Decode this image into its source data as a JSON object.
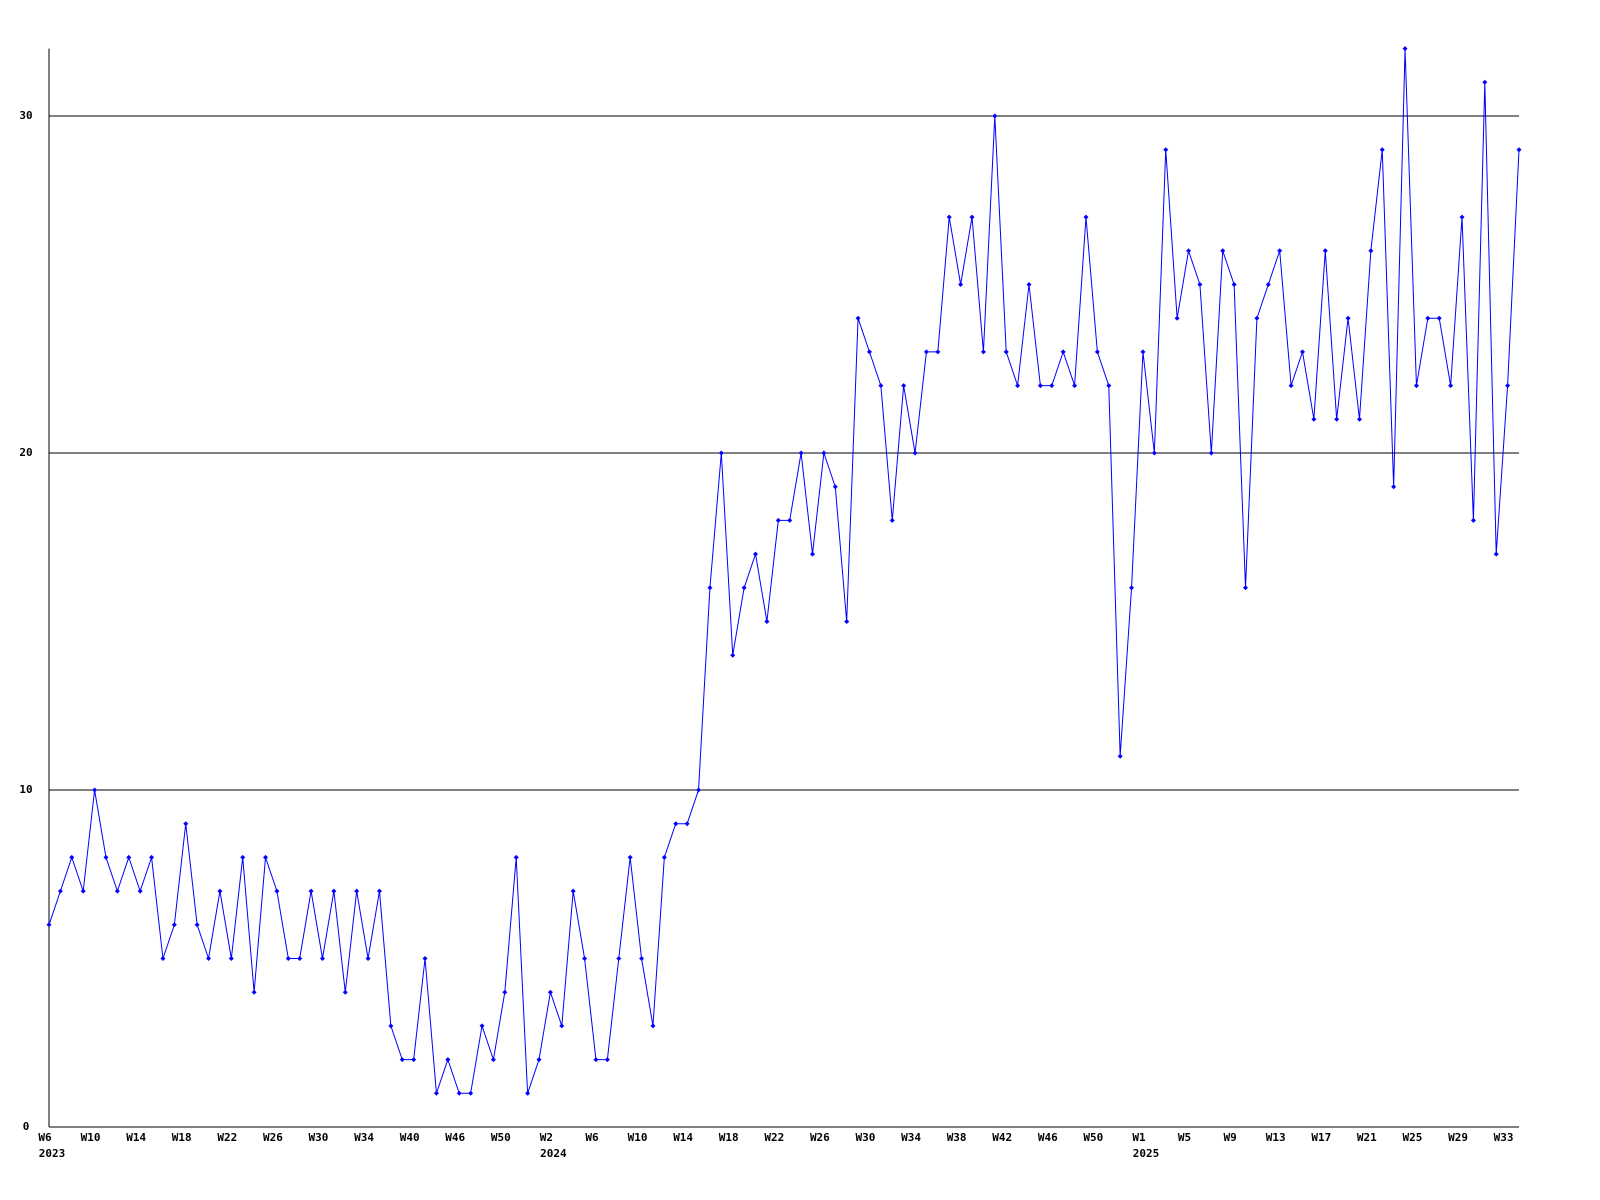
{
  "chart_data": {
    "type": "line",
    "categories": [
      "W6",
      null,
      null,
      null,
      "W10",
      null,
      null,
      null,
      "W14",
      null,
      null,
      null,
      "W18",
      null,
      null,
      null,
      "W22",
      null,
      null,
      null,
      "W26",
      null,
      null,
      null,
      "W30",
      null,
      null,
      null,
      "W34",
      null,
      null,
      null,
      "W40",
      null,
      null,
      null,
      "W46",
      null,
      null,
      null,
      "W50",
      null,
      null,
      null,
      "W2",
      null,
      null,
      null,
      "W6",
      null,
      null,
      null,
      "W10",
      null,
      null,
      null,
      "W14",
      null,
      null,
      null,
      "W18",
      null,
      null,
      null,
      "W22",
      null,
      null,
      null,
      "W26",
      null,
      null,
      null,
      "W30",
      null,
      null,
      null,
      "W34",
      null,
      null,
      null,
      "W38",
      null,
      null,
      null,
      "W42",
      null,
      null,
      null,
      "W46",
      null,
      null,
      null,
      "W50",
      null,
      null,
      null,
      "W1",
      null,
      null,
      null,
      "W5",
      null,
      null,
      null,
      "W9",
      null,
      null,
      null,
      "W13",
      null,
      null,
      null,
      "W17",
      null,
      null,
      null,
      "W21",
      null,
      null,
      null,
      "W25",
      null,
      null,
      null,
      "W29",
      null,
      null,
      null,
      "W33",
      null
    ],
    "years": [
      "2023",
      null,
      null,
      null,
      null,
      null,
      null,
      null,
      null,
      null,
      null,
      null,
      null,
      null,
      null,
      null,
      null,
      null,
      null,
      null,
      null,
      null,
      null,
      null,
      null,
      null,
      null,
      null,
      null,
      null,
      null,
      null,
      null,
      null,
      null,
      null,
      null,
      null,
      null,
      null,
      null,
      null,
      null,
      null,
      "2024",
      null,
      null,
      null,
      null,
      null,
      null,
      null,
      null,
      null,
      null,
      null,
      null,
      null,
      null,
      null,
      null,
      null,
      null,
      null,
      null,
      null,
      null,
      null,
      null,
      null,
      null,
      null,
      null,
      null,
      null,
      null,
      null,
      null,
      null,
      null,
      null,
      null,
      null,
      null,
      null,
      null,
      null,
      null,
      null,
      null,
      null,
      null,
      null,
      null,
      null,
      null,
      "2025",
      null,
      null,
      null,
      null,
      null,
      null,
      null,
      null,
      null,
      null,
      null,
      null,
      null,
      null,
      null,
      null,
      null,
      null,
      null,
      null,
      null,
      null,
      null,
      null,
      null,
      null,
      null,
      null,
      null,
      null,
      null,
      null,
      null
    ],
    "values": [
      6,
      7,
      8,
      7,
      10,
      8,
      7,
      8,
      7,
      8,
      5,
      6,
      9,
      6,
      5,
      7,
      5,
      8,
      4,
      8,
      7,
      5,
      5,
      7,
      5,
      7,
      4,
      7,
      5,
      7,
      3,
      2,
      2,
      5,
      1,
      2,
      1,
      1,
      3,
      2,
      4,
      8,
      1,
      2,
      4,
      3,
      7,
      5,
      2,
      2,
      5,
      8,
      5,
      3,
      8,
      9,
      9,
      10,
      16,
      20,
      14,
      16,
      17,
      15,
      18,
      18,
      20,
      17,
      20,
      19,
      15,
      24,
      23,
      22,
      18,
      22,
      20,
      23,
      23,
      27,
      25,
      27,
      23,
      30,
      23,
      22,
      25,
      22,
      22,
      23,
      22,
      27,
      23,
      22,
      11,
      16,
      23,
      20,
      29,
      24,
      26,
      25,
      20,
      26,
      25,
      16,
      24,
      25,
      26,
      22,
      23,
      21,
      26,
      21,
      24,
      21,
      26,
      29,
      19,
      32,
      22,
      24,
      24,
      22,
      27,
      18,
      31,
      17,
      22,
      29
    ],
    "color": "#0000ff",
    "ylim": [
      0,
      32
    ],
    "yticks": [
      0,
      10,
      20,
      30
    ],
    "grid": true
  }
}
